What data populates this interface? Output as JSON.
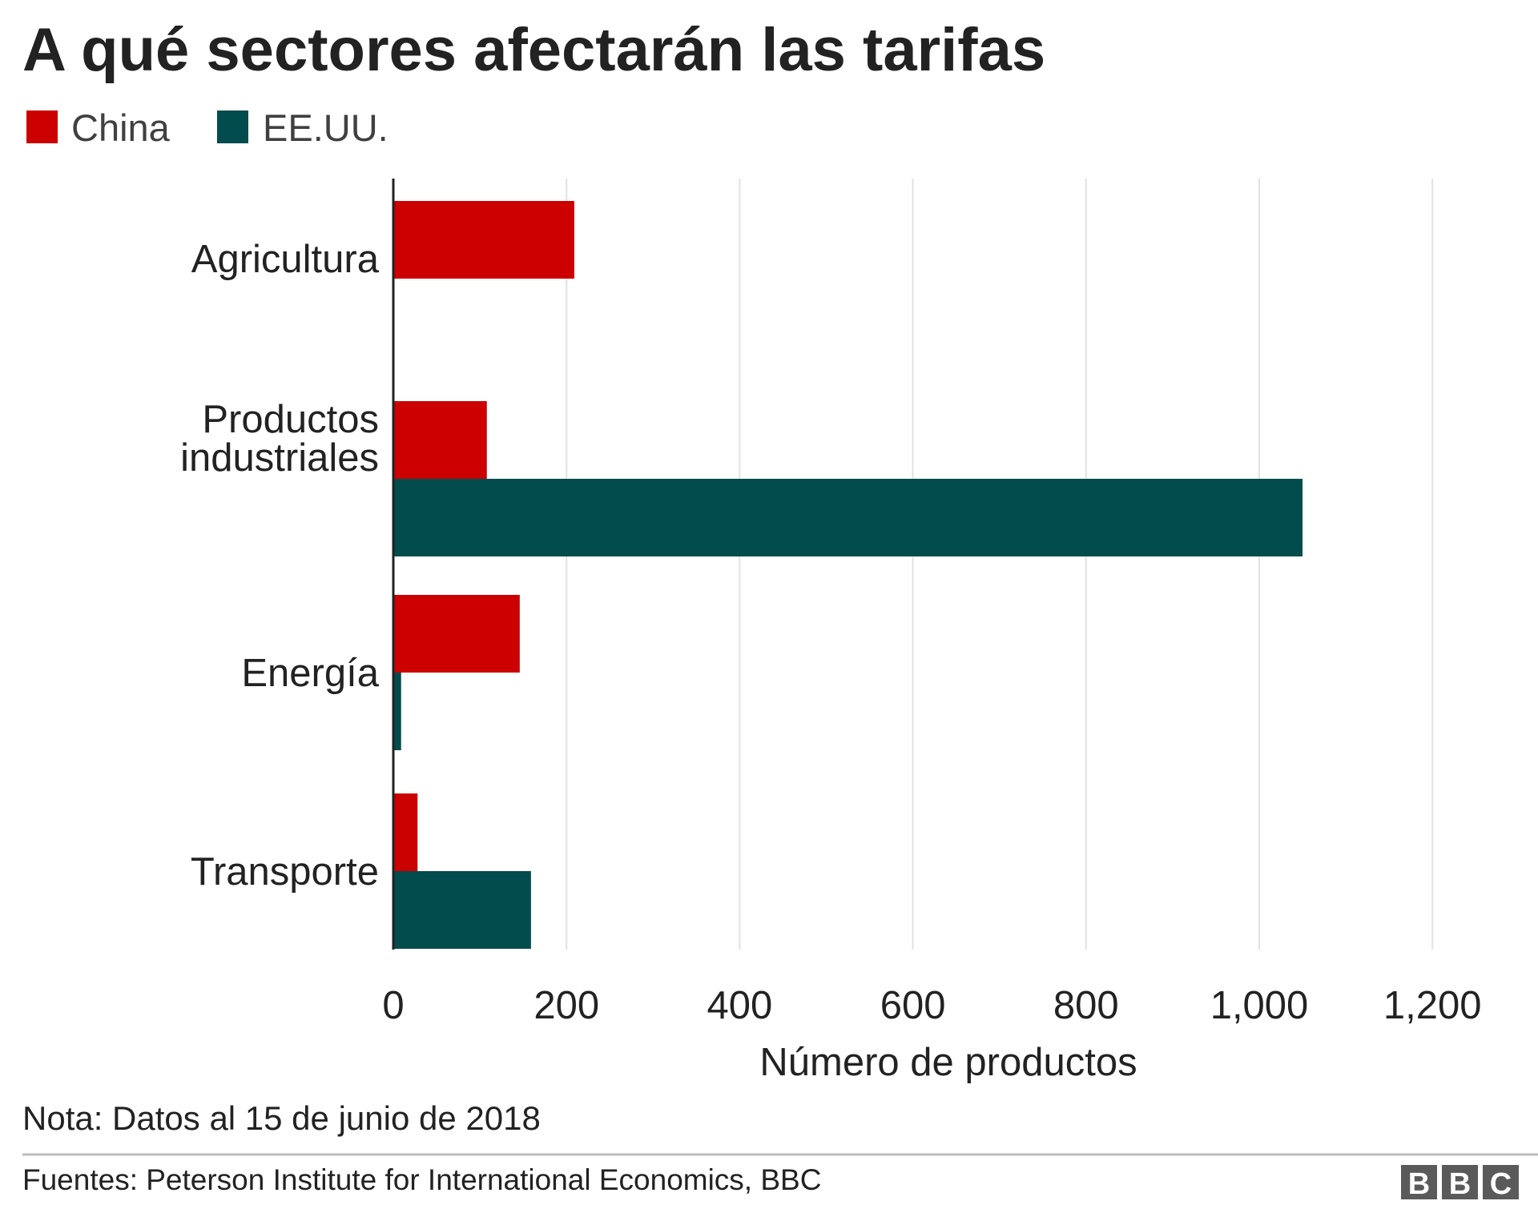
{
  "chart_data": {
    "type": "bar",
    "orientation": "horizontal",
    "title": "A qué sectores afectarán las tarifas",
    "xlabel": "Número de productos",
    "ylabel": "",
    "xlim": [
      0,
      1200
    ],
    "xticks": [
      0,
      200,
      400,
      600,
      800,
      1000,
      1200
    ],
    "xtick_labels": [
      "0",
      "200",
      "400",
      "600",
      "800",
      "1,000",
      "1,200"
    ],
    "grid": "vertical",
    "legend_position": "top-left",
    "categories": [
      "Agricultura",
      "Productos industriales",
      "Energía",
      "Transporte"
    ],
    "category_lines": [
      [
        "Agricultura"
      ],
      [
        "Productos",
        "industriales"
      ],
      [
        "Energía"
      ],
      [
        "Transporte"
      ]
    ],
    "series": [
      {
        "name": "China",
        "color": "#cc0000",
        "values": [
          209,
          108,
          146,
          28
        ]
      },
      {
        "name": "EE.UU.",
        "color": "#034c4d",
        "values": [
          0,
          1050,
          9,
          159
        ]
      }
    ],
    "note": "Nota: Datos al 15 de junio de 2018",
    "source": "Fuentes: Peterson Institute for International Economics, BBC"
  },
  "logo": "BBC"
}
